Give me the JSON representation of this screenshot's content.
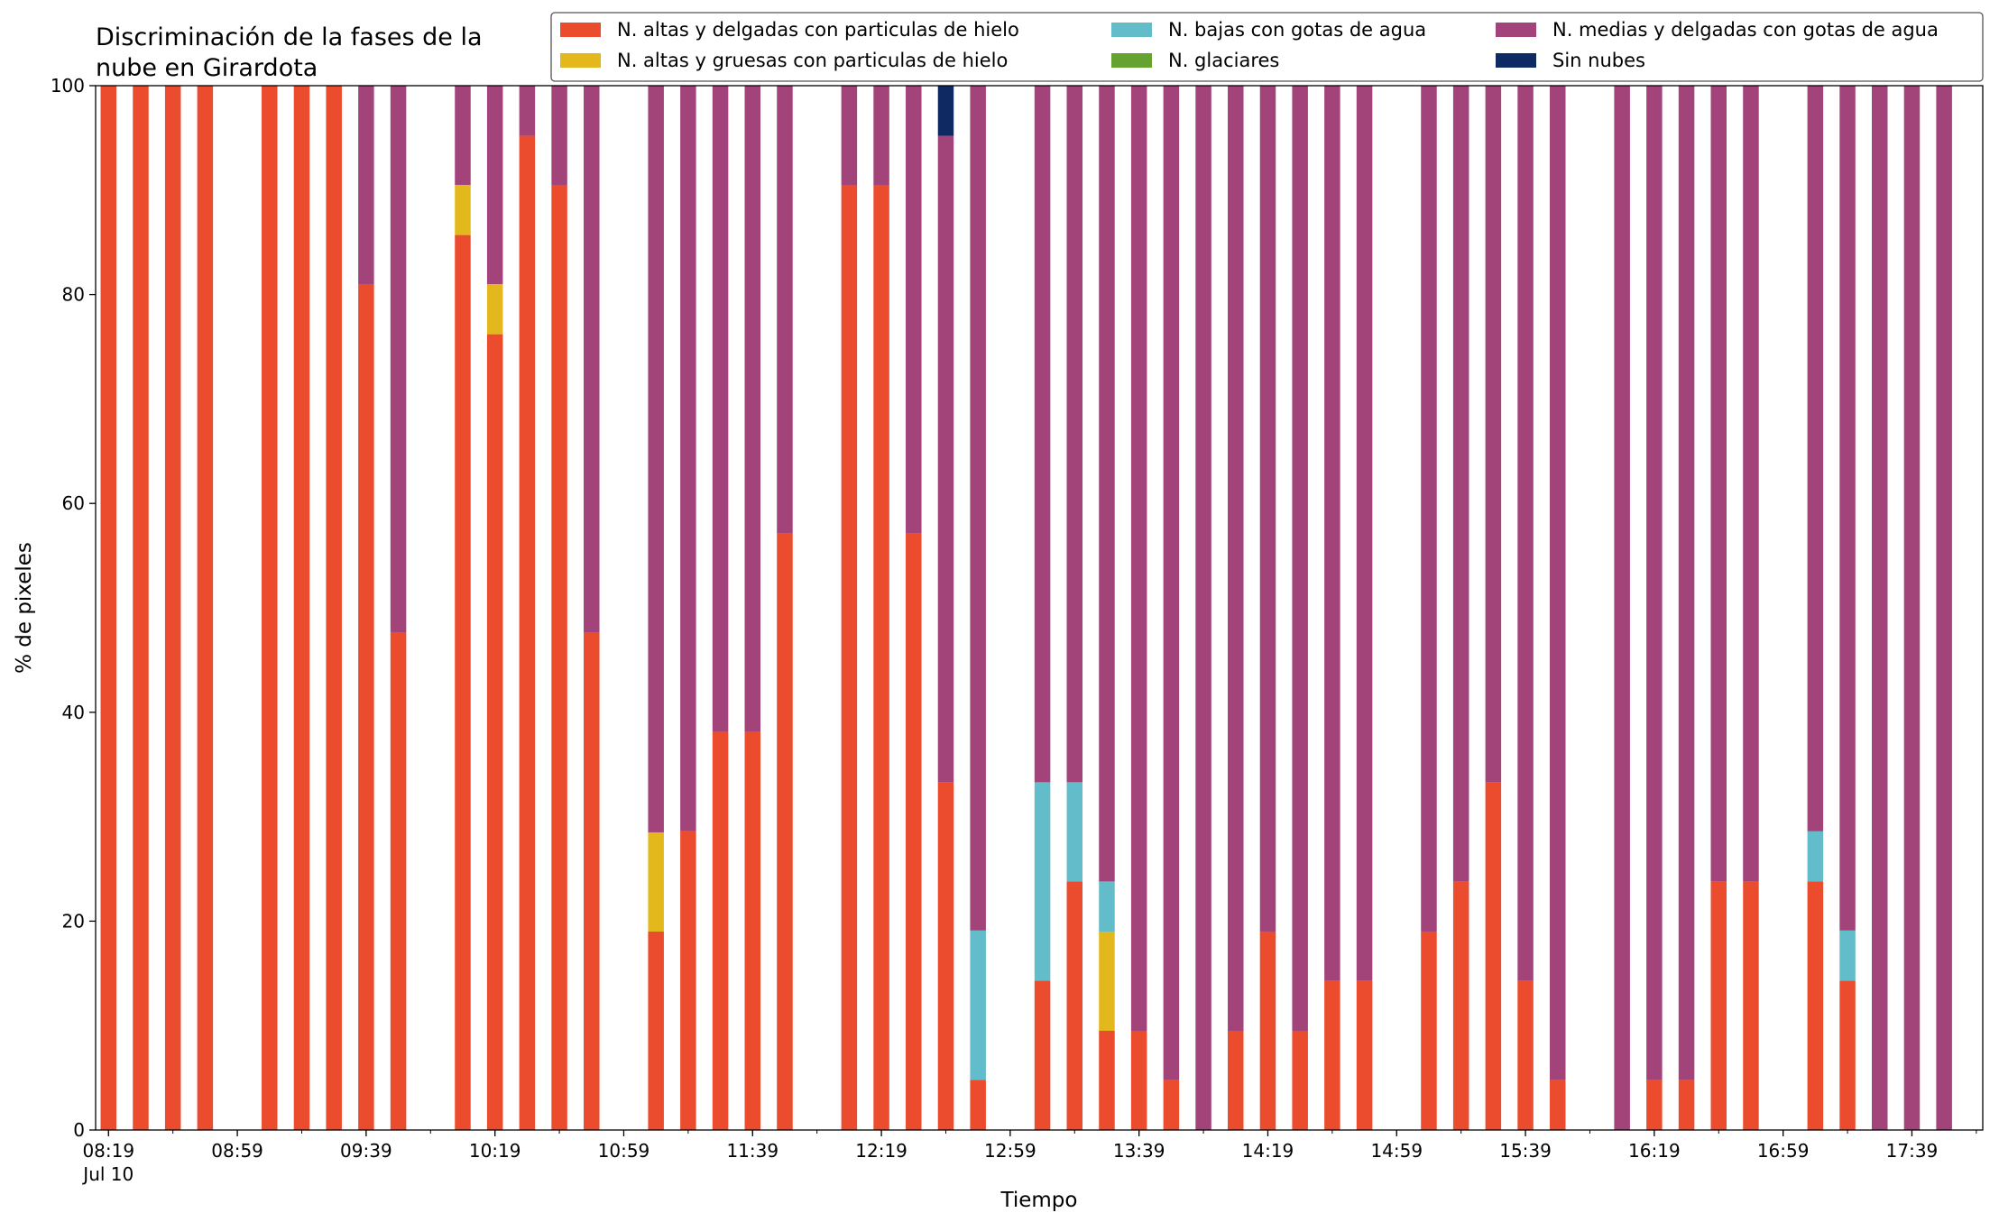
{
  "chart_data": {
    "type": "bar",
    "stacked": true,
    "title": "Discriminación de la fases de la\nnube en Girardota",
    "xlabel": "Tiempo",
    "ylabel": "% de pixeles",
    "ylim": [
      0,
      100
    ],
    "yticks": [
      0,
      20,
      40,
      60,
      80,
      100
    ],
    "xticks": [
      {
        "time": "08:19",
        "label": "08:19",
        "sublabel": "Jul 10"
      },
      {
        "time": "08:59",
        "label": "08:59"
      },
      {
        "time": "09:39",
        "label": "09:39"
      },
      {
        "time": "10:19",
        "label": "10:19"
      },
      {
        "time": "10:59",
        "label": "10:59"
      },
      {
        "time": "11:39",
        "label": "11:39"
      },
      {
        "time": "12:19",
        "label": "12:19"
      },
      {
        "time": "12:59",
        "label": "12:59"
      },
      {
        "time": "13:39",
        "label": "13:39"
      },
      {
        "time": "14:19",
        "label": "14:19"
      },
      {
        "time": "14:59",
        "label": "14:59"
      },
      {
        "time": "15:39",
        "label": "15:39"
      },
      {
        "time": "16:19",
        "label": "16:19"
      },
      {
        "time": "16:59",
        "label": "16:59"
      },
      {
        "time": "17:39",
        "label": "17:39"
      }
    ],
    "xrange": [
      "08:15",
      "18:01"
    ],
    "grid": false,
    "legend_position": "top-right",
    "series": [
      {
        "name": "N. altas y delgadas con particulas de hielo",
        "color": "#ec4c2e"
      },
      {
        "name": "N. altas y gruesas con particulas de hielo",
        "color": "#e3b81c"
      },
      {
        "name": "N. bajas con gotas de agua",
        "color": "#63bcc9"
      },
      {
        "name": "N. glaciares",
        "color": "#66a22f"
      },
      {
        "name": "N. medias y delgadas con gotas de agua",
        "color": "#a2447a"
      },
      {
        "name": "Sin nubes",
        "color": "#0f2a63"
      }
    ],
    "bars": [
      {
        "time": "08:19",
        "values": [
          100,
          0,
          0,
          0,
          0,
          0
        ]
      },
      {
        "time": "08:29",
        "values": [
          100,
          0,
          0,
          0,
          0,
          0
        ]
      },
      {
        "time": "08:39",
        "values": [
          100,
          0,
          0,
          0,
          0,
          0
        ]
      },
      {
        "time": "08:49",
        "values": [
          100,
          0,
          0,
          0,
          0,
          0
        ]
      },
      {
        "time": "09:09",
        "values": [
          100,
          0,
          0,
          0,
          0,
          0
        ]
      },
      {
        "time": "09:19",
        "values": [
          100,
          0,
          0,
          0,
          0,
          0
        ]
      },
      {
        "time": "09:29",
        "values": [
          100,
          0,
          0,
          0,
          0,
          0
        ]
      },
      {
        "time": "09:39",
        "values": [
          81,
          0,
          0,
          0,
          19,
          0
        ]
      },
      {
        "time": "09:49",
        "values": [
          47.6,
          0,
          0,
          0,
          52.4,
          0
        ]
      },
      {
        "time": "10:09",
        "values": [
          85.7,
          4.8,
          0,
          0,
          9.5,
          0
        ]
      },
      {
        "time": "10:19",
        "values": [
          76.2,
          4.8,
          0,
          0,
          19,
          0
        ]
      },
      {
        "time": "10:29",
        "values": [
          95.2,
          0,
          0,
          0,
          4.8,
          0
        ]
      },
      {
        "time": "10:39",
        "values": [
          90.5,
          0,
          0,
          0,
          9.5,
          0
        ]
      },
      {
        "time": "10:49",
        "values": [
          47.6,
          0,
          0,
          0,
          52.4,
          0
        ]
      },
      {
        "time": "11:09",
        "values": [
          19,
          9.5,
          0,
          0,
          71.5,
          0
        ]
      },
      {
        "time": "11:19",
        "values": [
          28.6,
          0,
          0,
          0,
          71.4,
          0
        ]
      },
      {
        "time": "11:29",
        "values": [
          38.1,
          0,
          0,
          0,
          61.9,
          0
        ]
      },
      {
        "time": "11:39",
        "values": [
          38.1,
          0,
          0,
          0,
          61.9,
          0
        ]
      },
      {
        "time": "11:49",
        "values": [
          57.1,
          0,
          0,
          0,
          42.9,
          0
        ]
      },
      {
        "time": "12:09",
        "values": [
          90.5,
          0,
          0,
          0,
          9.5,
          0
        ]
      },
      {
        "time": "12:19",
        "values": [
          90.5,
          0,
          0,
          0,
          9.5,
          0
        ]
      },
      {
        "time": "12:29",
        "values": [
          57.1,
          0,
          0,
          0,
          42.9,
          0
        ]
      },
      {
        "time": "12:39",
        "values": [
          33.3,
          0,
          0,
          0,
          61.9,
          4.8
        ]
      },
      {
        "time": "12:49",
        "values": [
          4.8,
          0,
          14.3,
          0,
          80.9,
          0
        ]
      },
      {
        "time": "13:09",
        "values": [
          14.3,
          0,
          19,
          0,
          66.7,
          0
        ]
      },
      {
        "time": "13:19",
        "values": [
          23.8,
          0,
          9.5,
          0,
          66.7,
          0
        ]
      },
      {
        "time": "13:29",
        "values": [
          9.5,
          9.5,
          4.8,
          0,
          76.2,
          0
        ]
      },
      {
        "time": "13:39",
        "values": [
          9.5,
          0,
          0,
          0,
          90.5,
          0
        ]
      },
      {
        "time": "13:49",
        "values": [
          4.8,
          0,
          0,
          0,
          95.2,
          0
        ]
      },
      {
        "time": "13:59",
        "values": [
          0,
          0,
          0,
          0,
          100,
          0
        ]
      },
      {
        "time": "14:09",
        "values": [
          9.5,
          0,
          0,
          0,
          90.5,
          0
        ]
      },
      {
        "time": "14:19",
        "values": [
          19,
          0,
          0,
          0,
          81,
          0
        ]
      },
      {
        "time": "14:29",
        "values": [
          9.5,
          0,
          0,
          0,
          90.5,
          0
        ]
      },
      {
        "time": "14:39",
        "values": [
          14.3,
          0,
          0,
          0,
          85.7,
          0
        ]
      },
      {
        "time": "14:49",
        "values": [
          14.3,
          0,
          0,
          0,
          85.7,
          0
        ]
      },
      {
        "time": "15:09",
        "values": [
          19,
          0,
          0,
          0,
          81,
          0
        ]
      },
      {
        "time": "15:19",
        "values": [
          23.8,
          0,
          0,
          0,
          76.2,
          0
        ]
      },
      {
        "time": "15:29",
        "values": [
          33.3,
          0,
          0,
          0,
          66.7,
          0
        ]
      },
      {
        "time": "15:39",
        "values": [
          14.3,
          0,
          0,
          0,
          85.7,
          0
        ]
      },
      {
        "time": "15:49",
        "values": [
          4.8,
          0,
          0,
          0,
          95.2,
          0
        ]
      },
      {
        "time": "16:09",
        "values": [
          0,
          0,
          0,
          0,
          100,
          0
        ]
      },
      {
        "time": "16:19",
        "values": [
          4.8,
          0,
          0,
          0,
          95.2,
          0
        ]
      },
      {
        "time": "16:29",
        "values": [
          4.8,
          0,
          0,
          0,
          95.2,
          0
        ]
      },
      {
        "time": "16:39",
        "values": [
          23.8,
          0,
          0,
          0,
          76.2,
          0
        ]
      },
      {
        "time": "16:49",
        "values": [
          23.8,
          0,
          0,
          0,
          76.2,
          0
        ]
      },
      {
        "time": "17:09",
        "values": [
          23.8,
          0,
          4.8,
          0,
          71.4,
          0
        ]
      },
      {
        "time": "17:19",
        "values": [
          14.3,
          0,
          4.8,
          0,
          80.9,
          0
        ]
      },
      {
        "time": "17:29",
        "values": [
          0,
          0,
          0,
          0,
          100,
          0
        ]
      },
      {
        "time": "17:39",
        "values": [
          0,
          0,
          0,
          0,
          100,
          0
        ]
      },
      {
        "time": "17:49",
        "values": [
          0,
          0,
          0,
          0,
          100,
          0
        ]
      }
    ]
  }
}
